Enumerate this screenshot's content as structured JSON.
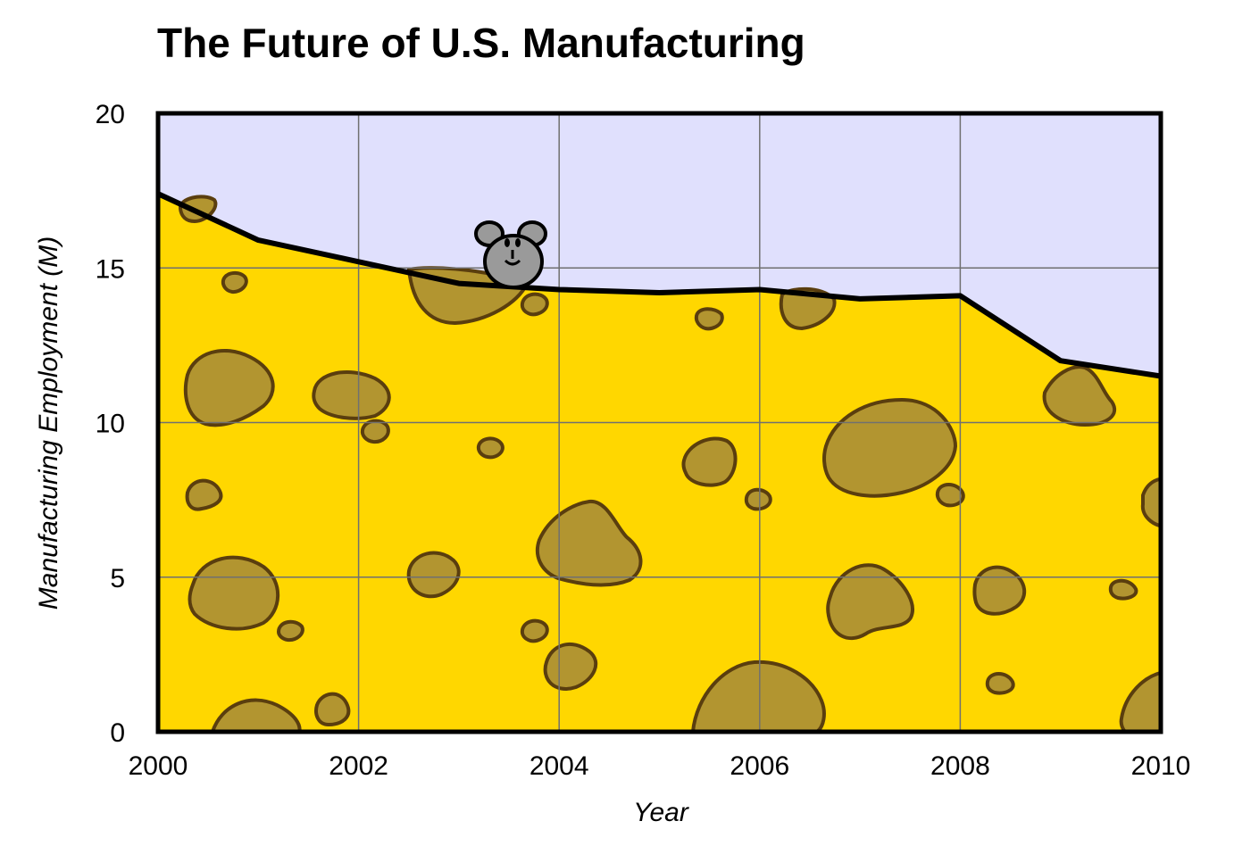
{
  "chart_data": {
    "type": "area",
    "title": "The Future of U.S. Manufacturing",
    "xlabel": "Year",
    "ylabel": "Manufacturing Employment (M)",
    "xlim": [
      2000,
      2010
    ],
    "ylim": [
      0,
      20
    ],
    "x_ticks": [
      "2000",
      "2002",
      "2004",
      "2006",
      "2008",
      "2010"
    ],
    "y_ticks": [
      "0",
      "5",
      "10",
      "15",
      "20"
    ],
    "grid": true,
    "x": [
      2000,
      2001,
      2002,
      2003,
      2004,
      2005,
      2006,
      2007,
      2008,
      2009,
      2010
    ],
    "values": [
      17.4,
      15.9,
      15.2,
      14.5,
      14.3,
      14.2,
      14.3,
      14.0,
      14.1,
      12.0,
      11.5
    ],
    "colors": {
      "fill": "#ffd700",
      "background": "#e0e0fd",
      "line": "#000000",
      "hole": "#b29530",
      "hole_outline": "#5a3e0e",
      "mouse": "#9a9a9a"
    },
    "decorations": [
      "cheese-holes",
      "mouse-icon"
    ]
  }
}
